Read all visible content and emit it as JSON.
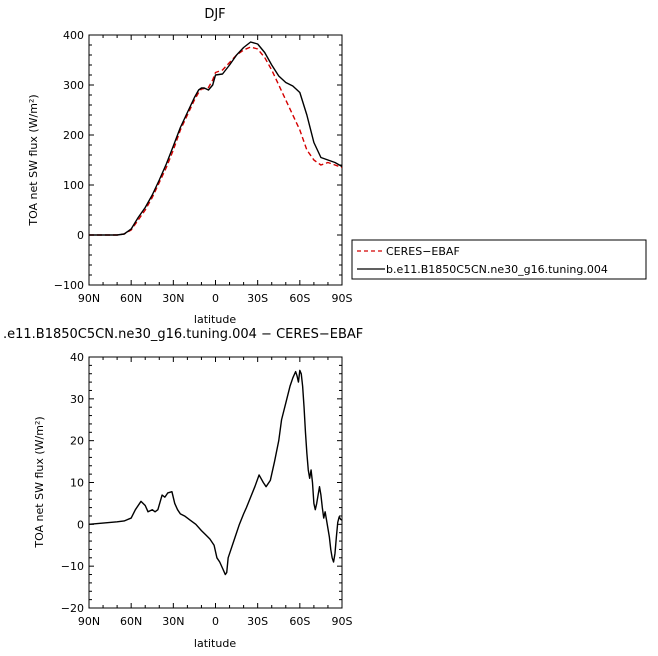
{
  "charts": [
    {
      "type": "line",
      "title": "DJF",
      "xlabel": "latitude",
      "ylabel": "TOA net SW flux (W/m²)",
      "xlim": [
        -90,
        90
      ],
      "ylim": [
        -100,
        400
      ],
      "x_ticks": [
        -90,
        -60,
        -30,
        0,
        30,
        60,
        90
      ],
      "x_tick_labels": [
        "90N",
        "60N",
        "30N",
        "0",
        "30S",
        "60S",
        "90S"
      ],
      "y_ticks": [
        -100,
        0,
        100,
        200,
        300,
        400
      ],
      "y_tick_labels": [
        "−100",
        "0",
        "100",
        "200",
        "300",
        "400"
      ],
      "legend": "outside-right",
      "series": [
        {
          "name": "CERES−EBAF",
          "color": "#d40000",
          "dash": "dashed",
          "x": [
            -90,
            -80,
            -70,
            -65,
            -60,
            -55,
            -50,
            -45,
            -40,
            -35,
            -30,
            -25,
            -20,
            -15,
            -12,
            -10,
            -8,
            -5,
            -2,
            0,
            5,
            10,
            15,
            20,
            25,
            30,
            35,
            40,
            45,
            50,
            55,
            60,
            65,
            70,
            75,
            80,
            85,
            90
          ],
          "y": [
            0,
            0,
            0,
            2,
            10,
            30,
            50,
            75,
            105,
            135,
            170,
            210,
            240,
            270,
            285,
            292,
            293,
            295,
            310,
            325,
            330,
            345,
            360,
            370,
            376,
            372,
            355,
            330,
            300,
            270,
            240,
            210,
            170,
            150,
            140,
            145,
            140,
            135
          ]
        },
        {
          "name": "b.e11.B1850C5CN.ne30_g16.tuning.004",
          "color": "#000000",
          "dash": "solid",
          "x": [
            -90,
            -80,
            -70,
            -65,
            -60,
            -55,
            -50,
            -45,
            -40,
            -35,
            -30,
            -25,
            -20,
            -15,
            -12,
            -10,
            -8,
            -5,
            -2,
            0,
            5,
            10,
            15,
            20,
            25,
            30,
            35,
            40,
            45,
            50,
            55,
            60,
            65,
            70,
            75,
            80,
            85,
            90
          ],
          "y": [
            0,
            0,
            0,
            2,
            12,
            35,
            55,
            80,
            110,
            142,
            178,
            215,
            245,
            275,
            290,
            294,
            294,
            290,
            300,
            320,
            322,
            340,
            360,
            375,
            386,
            382,
            365,
            340,
            318,
            305,
            298,
            285,
            240,
            185,
            155,
            150,
            145,
            137
          ]
        }
      ]
    },
    {
      "type": "line",
      "title": ".e11.B1850C5CN.ne30_g16.tuning.004 − CERES−EBAF",
      "xlabel": "latitude",
      "ylabel": "TOA net SW flux (W/m²)",
      "xlim": [
        -90,
        90
      ],
      "ylim": [
        -20,
        40
      ],
      "x_ticks": [
        -90,
        -60,
        -30,
        0,
        30,
        60,
        90
      ],
      "x_tick_labels": [
        "90N",
        "60N",
        "30N",
        "0",
        "30S",
        "60S",
        "90S"
      ],
      "y_ticks": [
        -20,
        -10,
        0,
        10,
        20,
        30,
        40
      ],
      "y_tick_labels": [
        "−20",
        "−10",
        "0",
        "10",
        "20",
        "30",
        "40"
      ],
      "legend": "none",
      "series": [
        {
          "name": "",
          "color": "#000000",
          "dash": "solid",
          "x": [
            -90,
            -80,
            -70,
            -65,
            -60,
            -57,
            -53,
            -50,
            -48,
            -45,
            -43,
            -41,
            -38,
            -36,
            -34,
            -31,
            -29,
            -27,
            -25,
            -22,
            -18,
            -14,
            -10,
            -7,
            -4,
            -1,
            1,
            3,
            5,
            7,
            8,
            9,
            11,
            14,
            17,
            20,
            22,
            25,
            28,
            31,
            34,
            36,
            39,
            42,
            45,
            47,
            50,
            53,
            55,
            57,
            58,
            59,
            60,
            61,
            62,
            63,
            64,
            65,
            66,
            67,
            68,
            69,
            70,
            71,
            72,
            73,
            74,
            75,
            76,
            77,
            78,
            79,
            80,
            81,
            82,
            83,
            84,
            85,
            86,
            87,
            88,
            89,
            90
          ],
          "y": [
            0,
            0.3,
            0.6,
            0.8,
            1.5,
            3.5,
            5.5,
            4.5,
            3,
            3.5,
            3,
            3.5,
            7,
            6.5,
            7.5,
            7.8,
            5,
            3.5,
            2.5,
            2,
            1,
            0,
            -1.5,
            -2.5,
            -3.5,
            -5,
            -8,
            -9,
            -10.5,
            -12,
            -11.5,
            -8,
            -6,
            -3,
            0,
            2.5,
            4,
            6.5,
            9,
            11.8,
            10,
            9,
            10.5,
            15,
            20,
            25,
            29,
            33,
            35,
            36.5,
            35.5,
            34,
            36.8,
            36,
            33,
            28,
            22,
            17,
            13,
            11,
            13,
            10,
            5,
            3.5,
            5,
            7,
            9,
            7,
            4,
            1.5,
            3,
            1,
            -1,
            -3,
            -6,
            -8,
            -9,
            -7,
            -3,
            0.5,
            1.8,
            1.2,
            1
          ]
        }
      ]
    }
  ]
}
